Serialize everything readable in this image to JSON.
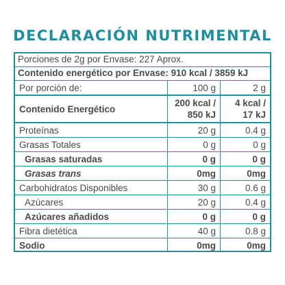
{
  "title": "DECLARACIÓN NUTRIMENTAL",
  "portions_line": "Porciones de 2g por Envase: 227 Aprox.",
  "energy_per_container": {
    "label": "Contenido energético por Envase:",
    "value": "910 kcal / 3859 kJ"
  },
  "header": {
    "label": "Por porción de:",
    "col1": "100 g",
    "col2": "2 g"
  },
  "energy": {
    "label": "Contenido Energético",
    "col1_kcal": "200 kcal /",
    "col1_kj": "850 kJ",
    "col2_kcal": "4 kcal /",
    "col2_kj": "17 kJ"
  },
  "rows": [
    {
      "label": "Proteínas",
      "col1": "20 g",
      "col2": "0.4 g"
    },
    {
      "label": "Grasas Totales",
      "col1": "0 g",
      "col2": "0 g"
    },
    {
      "label": "Grasas saturadas",
      "col1": "0 g",
      "col2": "0 g"
    },
    {
      "label": "Grasas trans",
      "col1": "0mg",
      "col2": "0mg"
    },
    {
      "label": "Carbohidratos Disponibles",
      "col1": "30 g",
      "col2": "0.6 g"
    },
    {
      "label": "Azúcares",
      "col1": "20 g",
      "col2": "0.4 g"
    },
    {
      "label": "Azúcares añadidos",
      "col1": "0 g",
      "col2": "0 g"
    },
    {
      "label": "Fibra dietética",
      "col1": "40 g",
      "col2": "0.8 g"
    },
    {
      "label": "Sodio",
      "col1": "0mg",
      "col2": "0mg"
    }
  ],
  "colors": {
    "accent": "#1e8fa0",
    "text": "#4a4a4a"
  }
}
